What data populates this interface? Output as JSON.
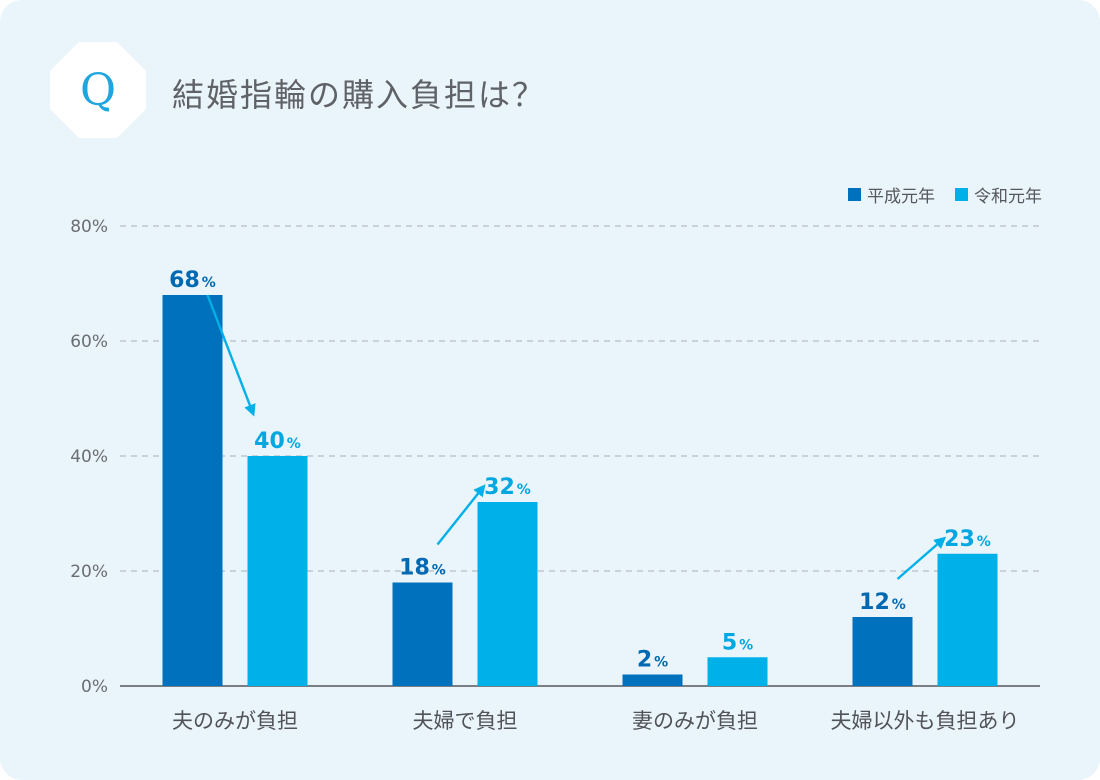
{
  "question": {
    "badge_letter": "Q",
    "title": "結婚指輪の購入負担は？"
  },
  "colors": {
    "background": "#eaf4fb",
    "series_heisei": "#0071bc",
    "series_reiwa": "#00b0e8",
    "grid": "#b7bcc1",
    "axis_text": "#6b6e72"
  },
  "chart_data": {
    "type": "bar",
    "categories": [
      "夫のみが負担",
      "夫婦で負担",
      "妻のみが負担",
      "夫婦以外も負担あり"
    ],
    "series": [
      {
        "name": "平成元年",
        "values": [
          68,
          18,
          2,
          12
        ]
      },
      {
        "name": "令和元年",
        "values": [
          40,
          32,
          5,
          23
        ]
      }
    ],
    "value_suffix": "%",
    "ylim": [
      0,
      80
    ],
    "yticks": [
      0,
      20,
      40,
      60,
      80
    ],
    "ytick_labels": [
      "0%",
      "20%",
      "40%",
      "60%",
      "80%"
    ],
    "grid": true,
    "legend": "top-right",
    "trend_arrows": true
  }
}
